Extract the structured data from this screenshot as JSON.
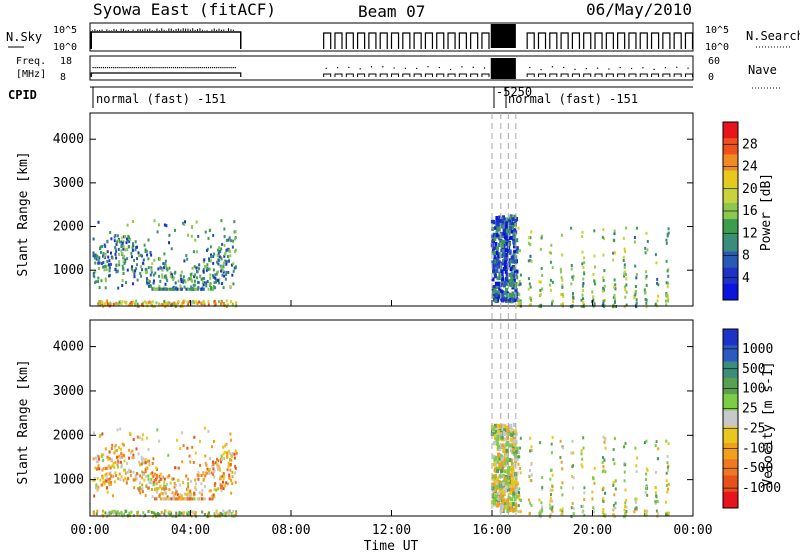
{
  "header": {
    "title": "Syowa East (fitACF)",
    "beam": "Beam 07",
    "date": "06/May/2010"
  },
  "strips": {
    "nsky": {
      "left_label": "N.Sky",
      "left_ticks": [
        "10^5",
        "10^0"
      ],
      "right_label": "N.Search",
      "right_ticks": [
        "10^5",
        "10^0"
      ]
    },
    "freq": {
      "left_label_1": "Freq.",
      "left_label_2": "[MHz]",
      "left_ticks": [
        "18",
        "8"
      ],
      "right_label": "Nave",
      "right_ticks": [
        "60",
        "0"
      ]
    },
    "cpid": {
      "label": "CPID",
      "program_text": "normal (fast) -151",
      "overlap_text_1": "-5250",
      "overlap_text_2": "normal (fast) -151"
    }
  },
  "panels": {
    "power": {
      "ylabel": "Slant Range [km]",
      "colorbar_label": "Power [dB]",
      "colorbar_ticks": [
        "28",
        "24",
        "20",
        "16",
        "12",
        "8",
        "4"
      ],
      "colorbar_colors": [
        "#e8141c",
        "#f0501e",
        "#f08a22",
        "#e6c81e",
        "#c8d23c",
        "#8cc850",
        "#3c9c50",
        "#3c8c7c",
        "#285ab4",
        "#1e32c8",
        "#0a14dc"
      ]
    },
    "velocity": {
      "ylabel": "Slant Range [km]",
      "colorbar_label": "Velocity [m s-1]",
      "colorbar_ticks": [
        "1000",
        "500",
        "100",
        "25",
        "-25",
        "-100",
        "-500",
        "-1000"
      ],
      "colorbar_colors": [
        "#1e32c8",
        "#2d5abe",
        "#3c8c7c",
        "#5aa050",
        "#7ccc46",
        "#c8c8c8",
        "#e6c81e",
        "#f0a01e",
        "#f07820",
        "#e8501c",
        "#e8141c"
      ]
    }
  },
  "xaxis": {
    "label": "Time UT",
    "ticks": [
      "00:00",
      "04:00",
      "08:00",
      "12:00",
      "16:00",
      "20:00",
      "00:00"
    ]
  },
  "chart_data": {
    "type": "heatmap",
    "x_unit": "hours UT",
    "xlim": [
      0,
      24
    ],
    "y_unit": "km",
    "ylim": [
      180,
      4600
    ],
    "yticks": [
      1000,
      2000,
      3000,
      4000
    ],
    "colorscale_power_db": [
      0,
      30
    ],
    "colorscale_velocity_ms": [
      -1000,
      1000
    ],
    "scan_gaps": [
      [
        6.0,
        9.2
      ]
    ],
    "dashed_time_markers_hours": [
      16.0,
      16.35,
      16.65,
      16.95
    ],
    "dense_interval_hours": [
      15.95,
      16.95
    ],
    "regions": [
      {
        "name": "morning-scatter",
        "t_start": 0.1,
        "t_end": 5.8,
        "r_min": 600,
        "r_max": 2200,
        "power_db": 10,
        "velocity_ms": -300
      },
      {
        "name": "near-range-echoes",
        "t_start": 0.1,
        "t_end": 5.8,
        "r_min": 200,
        "r_max": 330,
        "power_db": 20,
        "velocity_ms": 20
      },
      {
        "name": "afternoon-burst",
        "t_start": 15.95,
        "t_end": 16.95,
        "r_min": 330,
        "r_max": 2280,
        "power_db": 6,
        "velocity_ms": 0
      },
      {
        "name": "evening-columns",
        "t_start": 17.0,
        "t_end": 23.6,
        "r_min": 200,
        "r_max": 2000,
        "power_db": 14,
        "velocity_ms": 50
      }
    ]
  }
}
